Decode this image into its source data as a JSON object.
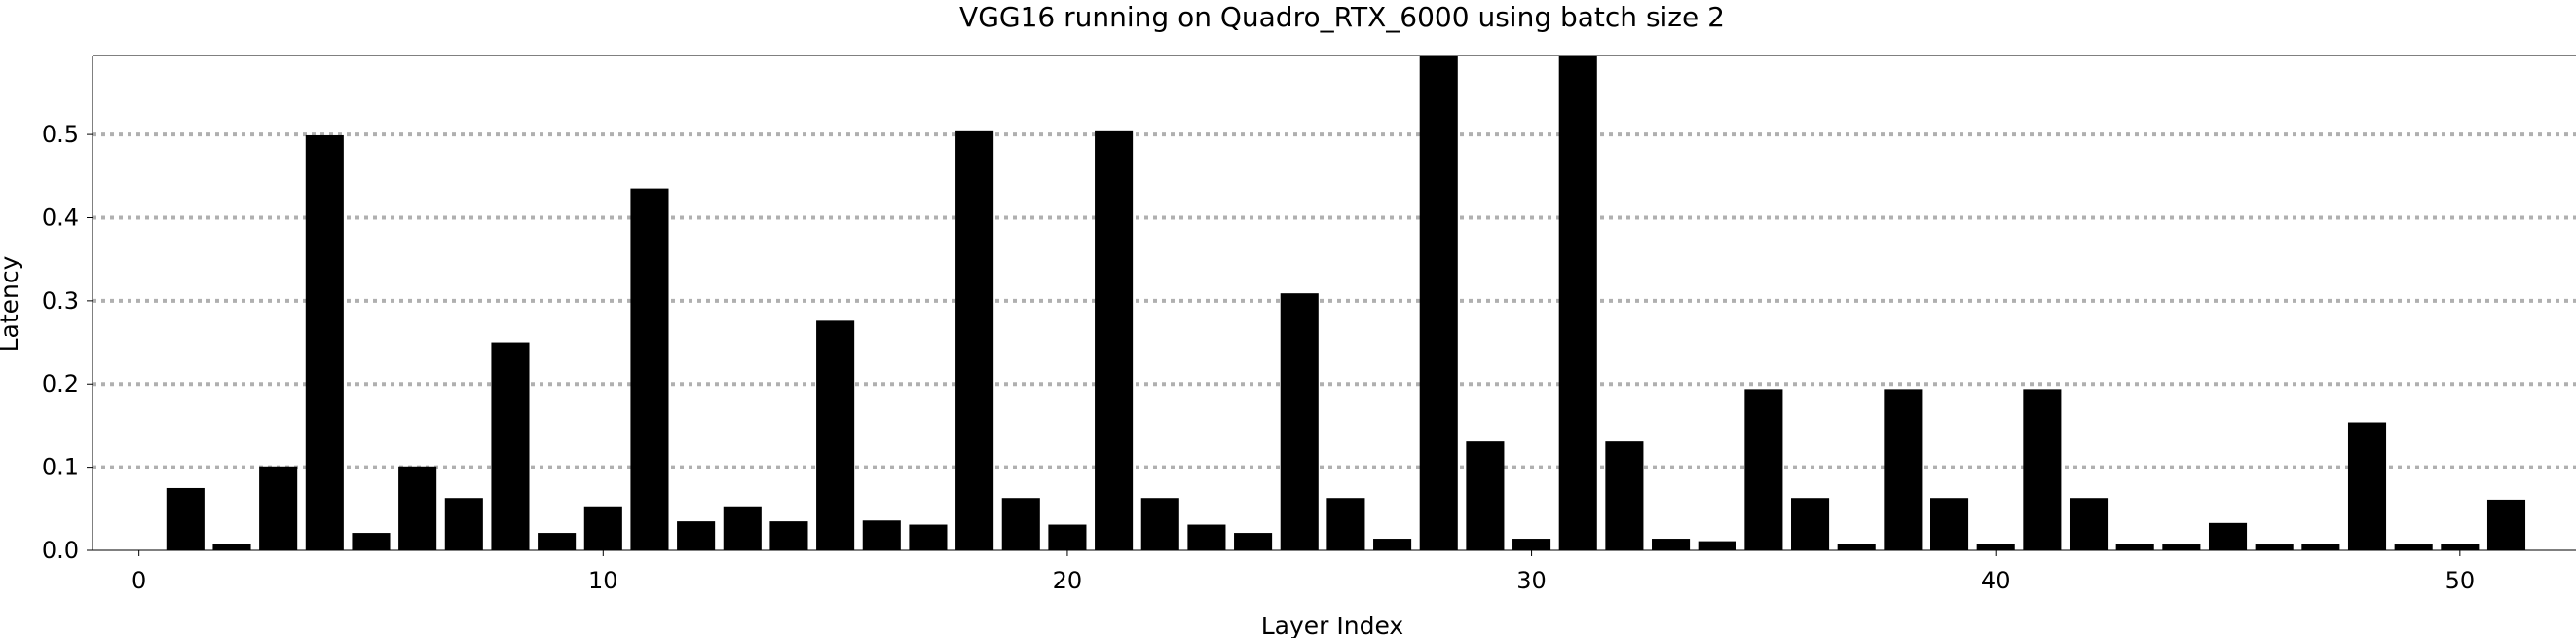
{
  "chart_data": {
    "type": "bar",
    "title": "VGG16 running on Quadro_RTX_6000 using batch size 2",
    "xlabel": "Layer Index",
    "ylabel": "Latency",
    "xlim": [
      -1,
      52.5
    ],
    "ylim": [
      0,
      0.595
    ],
    "xticks": [
      0,
      10,
      20,
      30,
      40,
      50
    ],
    "yticks": [
      0.0,
      0.1,
      0.2,
      0.3,
      0.4,
      0.5
    ],
    "ytick_labels": [
      "0.0",
      "0.1",
      "0.2",
      "0.3",
      "0.4",
      "0.5"
    ],
    "grid": "horizontal-dotted",
    "bar_color": "#000000",
    "grid_color": "#b0b0b0",
    "x": [
      1,
      2,
      3,
      4,
      5,
      6,
      7,
      8,
      9,
      10,
      11,
      12,
      13,
      14,
      15,
      16,
      17,
      18,
      19,
      20,
      21,
      22,
      23,
      24,
      25,
      26,
      27,
      28,
      29,
      30,
      31,
      32,
      33,
      34,
      35,
      36,
      37,
      38,
      39,
      40,
      41,
      42,
      43,
      44,
      45,
      46,
      47,
      48,
      49,
      50,
      51
    ],
    "values": [
      0.075,
      0.008,
      0.101,
      0.499,
      0.021,
      0.101,
      0.063,
      0.25,
      0.021,
      0.053,
      0.435,
      0.035,
      0.053,
      0.035,
      0.276,
      0.036,
      0.031,
      0.505,
      0.063,
      0.031,
      0.505,
      0.063,
      0.031,
      0.021,
      0.309,
      0.063,
      0.014,
      0.62,
      0.131,
      0.014,
      0.62,
      0.131,
      0.014,
      0.011,
      0.194,
      0.063,
      0.008,
      0.194,
      0.063,
      0.008,
      0.194,
      0.063,
      0.008,
      0.007,
      0.033,
      0.007,
      0.008,
      0.154,
      0.007,
      0.008,
      0.061
    ]
  }
}
